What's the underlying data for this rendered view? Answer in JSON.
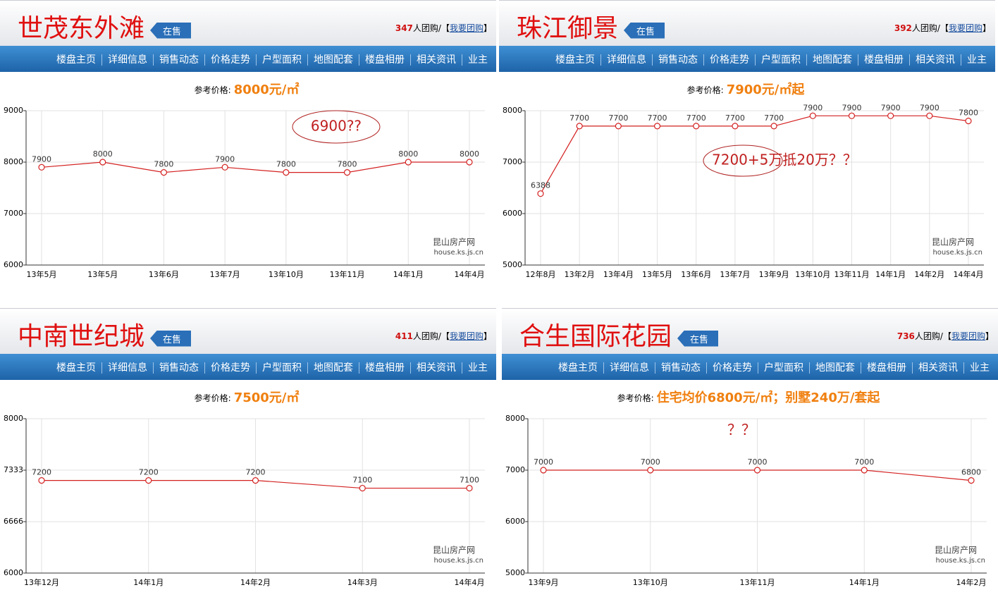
{
  "panels": [
    {
      "title": "世茂东外滩",
      "badge": "在售",
      "group_count": "347",
      "group_text": "人团购/【",
      "group_link": "我要团购",
      "group_close": "】",
      "nav": [
        "楼盘主页",
        "详细信息",
        "销售动态",
        "价格走势",
        "户型面积",
        "地图配套",
        "楼盘相册",
        "相关资讯",
        "业主"
      ],
      "price_label": "参考价格:",
      "price": "8000元/㎡",
      "source": "昆山房产网",
      "site": "house.ks.js.cn"
    },
    {
      "title": "珠江御景",
      "badge": "在售",
      "group_count": "392",
      "group_text": "人团购/【",
      "group_link": "我要团购",
      "group_close": "】",
      "nav": [
        "楼盘主页",
        "详细信息",
        "销售动态",
        "价格走势",
        "户型面积",
        "地图配套",
        "楼盘相册",
        "相关资讯",
        "业主"
      ],
      "price_label": "参考价格:",
      "price": "7900元/㎡起",
      "source": "昆山房产网",
      "site": "house.ks.js.cn"
    },
    {
      "title": "中南世纪城",
      "badge": "在售",
      "group_count": "411",
      "group_text": "人团购/【",
      "group_link": "我要团购",
      "group_close": "】",
      "nav": [
        "楼盘主页",
        "详细信息",
        "销售动态",
        "价格走势",
        "户型面积",
        "地图配套",
        "楼盘相册",
        "相关资讯",
        "业主"
      ],
      "price_label": "参考价格:",
      "price": "7500元/㎡",
      "source": "昆山房产网",
      "site": "house.ks.js.cn"
    },
    {
      "title": "合生国际花园",
      "badge": "在售",
      "group_count": "736",
      "group_text": "人团购/【",
      "group_link": "我要团购",
      "group_close": "】",
      "nav": [
        "楼盘主页",
        "详细信息",
        "销售动态",
        "价格走势",
        "户型面积",
        "地图配套",
        "楼盘相册",
        "相关资讯",
        "业主"
      ],
      "price_label": "参考价格:",
      "price": "住宅均价6800元/㎡；别墅240万/套起",
      "source": "昆山房产网",
      "site": "house.ks.js.cn"
    }
  ],
  "chart_data": [
    {
      "type": "line",
      "categories": [
        "13年5月",
        "13年5月",
        "13年6月",
        "13年7月",
        "13年10月",
        "13年11月",
        "14年1月",
        "14年4月"
      ],
      "values": [
        7900,
        8000,
        7800,
        7900,
        7800,
        7800,
        8000,
        8000
      ],
      "color": "#d42020",
      "ylim": [
        6000,
        9000
      ],
      "yticks": [
        6000,
        7000,
        8000,
        9000
      ],
      "grid": true,
      "annotation": "6900??"
    },
    {
      "type": "line",
      "categories": [
        "12年8月",
        "13年2月",
        "13年4月",
        "13年5月",
        "13年6月",
        "13年7月",
        "13年9月",
        "13年10月",
        "13年11月",
        "14年1月",
        "14年2月",
        "14年4月"
      ],
      "values": [
        6388,
        7700,
        7700,
        7700,
        7700,
        7700,
        7700,
        7900,
        7900,
        7900,
        7900,
        7800
      ],
      "color": "#d42020",
      "ylim": [
        5000,
        8000
      ],
      "yticks": [
        5000,
        6000,
        7000,
        8000
      ],
      "grid": true,
      "annotation": "7200+5万抵20万？？"
    },
    {
      "type": "line",
      "categories": [
        "13年12月",
        "14年1月",
        "14年2月",
        "14年3月",
        "14年4月"
      ],
      "values": [
        7200,
        7200,
        7200,
        7100,
        7100
      ],
      "color": "#d42020",
      "ylim": [
        6000,
        8000
      ],
      "yticks": [
        6000,
        6666,
        7333,
        8000
      ],
      "grid": true
    },
    {
      "type": "line",
      "categories": [
        "13年9月",
        "13年10月",
        "13年11月",
        "14年1月",
        "14年2月"
      ],
      "values": [
        7000,
        7000,
        7000,
        7000,
        6800
      ],
      "color": "#d42020",
      "ylim": [
        5000,
        8000
      ],
      "yticks": [
        5000,
        6000,
        7000,
        8000
      ],
      "grid": true,
      "annotation": "？？"
    }
  ]
}
